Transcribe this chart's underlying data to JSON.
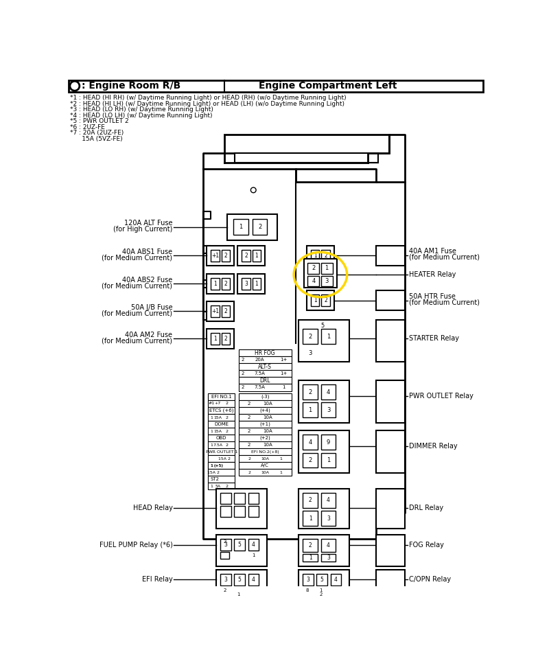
{
  "title": "② : Engine Room R/B",
  "title2": "Engine Compartment Left",
  "bg_color": "#ffffff",
  "notes": [
    "*1 : HEAD (HI RH) (w/ Daytime Running Light) or HEAD (RH) (w/o Daytime Running Light)",
    "*2 : HEAD (HI LH) (w/ Daytime Running Light) or HEAD (LH) (w/o Daytime Running Light)",
    "*3 : HEAD (LO RH) (w/ Daytime Running Light)",
    "*4 : HEAD (LO LH) (w/ Daytime Running Light)",
    "*5 : PWR OUTLET 2",
    "*6 : 2UZ-FE",
    "*7 : 20A (2UZ-FE)",
    "      15A (5VZ-FE)"
  ]
}
